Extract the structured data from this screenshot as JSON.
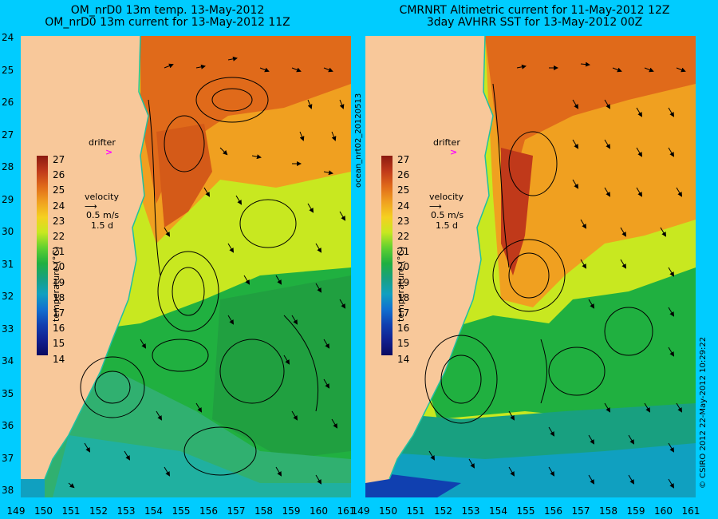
{
  "panel_left": {
    "title1": "OM_nrD0 13m temp. 13-May-2012",
    "title2": "OM_nrD0 13m current for 13-May-2012 11Z"
  },
  "panel_right": {
    "title1": "CMRNRT Altimetric current for 11-May-2012 12Z",
    "title2": "3day AVHRR SST for 13-May-2012 00Z"
  },
  "y_ticks": [
    "24",
    "25",
    "26",
    "27",
    "28",
    "29",
    "30",
    "31",
    "32",
    "33",
    "34",
    "35",
    "36",
    "37",
    "38"
  ],
  "x_ticks": [
    "149",
    "150",
    "151",
    "152",
    "153",
    "154",
    "155",
    "156",
    "157",
    "158",
    "159",
    "160",
    "161"
  ],
  "colorbar": {
    "labels": [
      "27",
      "26",
      "25",
      "24",
      "23",
      "22",
      "21",
      "20",
      "19",
      "18",
      "17",
      "16",
      "15",
      "14"
    ],
    "title": "temperature (°C)",
    "colors": [
      "#8b1a10",
      "#c0391a",
      "#e06a1a",
      "#f0a020",
      "#f5d020",
      "#c8e820",
      "#60d030",
      "#20b040",
      "#18a080",
      "#10a0c0",
      "#1070d0",
      "#1040b0",
      "#102090",
      "#0a0a60"
    ]
  },
  "annotations": {
    "drifter": "drifter",
    "velocity": "velocity",
    "scale1": "0.5 m/s",
    "scale2": "1.5 d"
  },
  "side_labels": {
    "middle": "ocean_nrt02_20120513",
    "right": "© CSIRO 2012   22-May-2012 10:29:22"
  },
  "colors": {
    "background": "#00ccff",
    "land": "#f8c89a",
    "coast": "#20c0a0",
    "drifter": "#ff00ff"
  }
}
